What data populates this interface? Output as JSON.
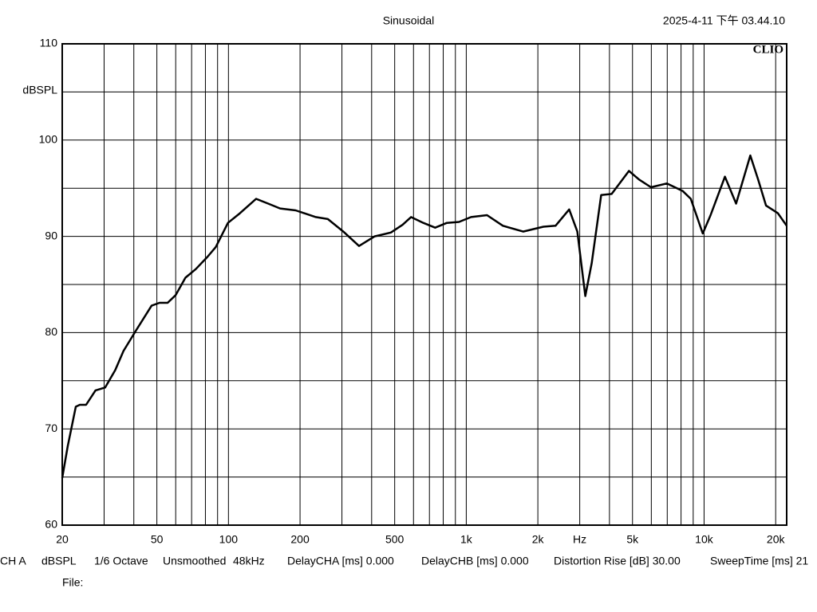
{
  "chart_data": {
    "type": "line",
    "title": "Sinusoidal",
    "timestamp": "2025-4-11 下午 03.44.10",
    "logo": "CLIO",
    "ylabel": "dBSPL",
    "xscale": "log",
    "xlim": [
      20,
      22250
    ],
    "ylim": [
      60,
      110
    ],
    "yticks": [
      60,
      70,
      80,
      90,
      100,
      110
    ],
    "ygrid": [
      65,
      75,
      85,
      95,
      105
    ],
    "xticks": [
      20,
      50,
      100,
      200,
      500,
      {
        "value": 1000,
        "label": "1k"
      },
      {
        "value": 2000,
        "label": "2k"
      },
      {
        "value": 3000,
        "label": "Hz"
      },
      {
        "value": 5000,
        "label": "5k"
      },
      {
        "value": 10000,
        "label": "10k"
      },
      {
        "value": 20000,
        "label": "20k"
      }
    ],
    "xgrid": [
      30,
      40,
      50,
      60,
      70,
      80,
      90,
      100,
      200,
      300,
      400,
      500,
      600,
      700,
      800,
      900,
      1000,
      2000,
      3000,
      4000,
      5000,
      6000,
      7000,
      8000,
      9000,
      10000,
      20000
    ],
    "grid": true,
    "series": [
      {
        "color": "#000000",
        "x": [
          20,
          21.1,
          22.8,
          23.7,
          25.2,
          27.6,
          30.3,
          33.4,
          36.2,
          40.8,
          47.5,
          51.3,
          55.5,
          60,
          65.9,
          72.9,
          81.8,
          88.5,
          99.5,
          111.7,
          130.7,
          146.9,
          164.9,
          191.7,
          232.9,
          261.7,
          304,
          354,
          412,
          482,
          540,
          586,
          660,
          740,
          829,
          932,
          1047,
          1222,
          1426,
          1734,
          2110,
          2373,
          2708,
          2930,
          3166,
          3368,
          3693,
          4085,
          4411,
          4832,
          5330,
          5980,
          6980,
          8140,
          8790,
          9870,
          10650,
          12240,
          13630,
          15640,
          16880,
          18220,
          20430,
          22250
        ],
        "values": [
          64.9,
          68.2,
          72.3,
          72.5,
          72.5,
          74.0,
          74.3,
          76.1,
          78.1,
          80.2,
          82.8,
          83.1,
          83.1,
          83.9,
          85.7,
          86.6,
          87.9,
          88.9,
          91.4,
          92.4,
          93.9,
          93.4,
          92.9,
          92.7,
          92.0,
          91.8,
          90.5,
          89.0,
          90.0,
          90.4,
          91.2,
          92.0,
          91.4,
          90.9,
          91.4,
          91.5,
          92.0,
          92.2,
          91.1,
          90.5,
          91.0,
          91.1,
          92.8,
          90.5,
          83.8,
          87.2,
          94.3,
          94.4,
          95.5,
          96.8,
          95.9,
          95.1,
          95.5,
          94.7,
          93.9,
          90.3,
          92.2,
          96.2,
          93.4,
          98.4,
          95.9,
          93.2,
          92.4,
          91.1
        ]
      }
    ],
    "footer": [
      "CH A",
      "dBSPL",
      "1/6 Octave",
      "Unsmoothed",
      "48kHz",
      "DelayCHA [ms] 0.000",
      "DelayCHB [ms] 0.000",
      "Distortion Rise [dB] 30.00",
      "SweepTime [ms] 21"
    ],
    "file_label": "File:"
  }
}
